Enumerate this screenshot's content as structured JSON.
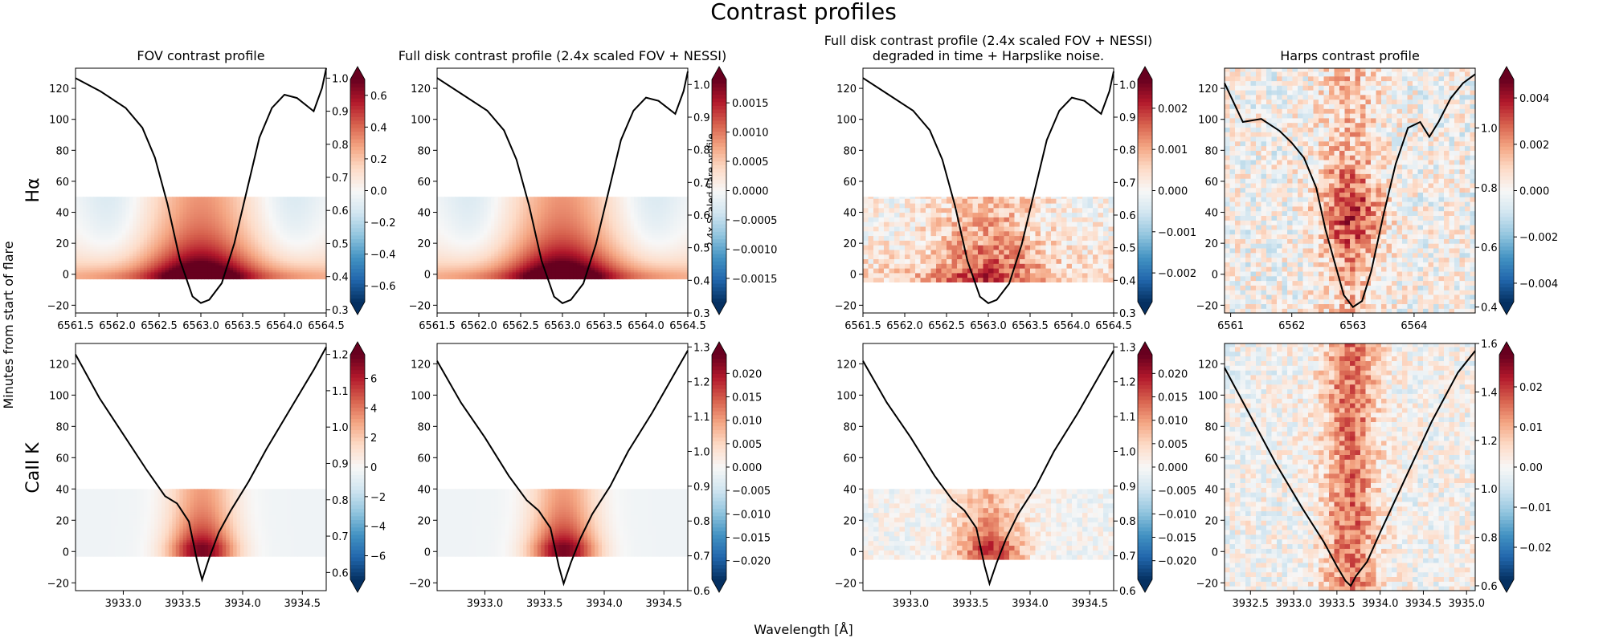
{
  "figure": {
    "suptitle": "Contrast profiles",
    "ylabel": "Minutes from start of flare",
    "xlabel": "Wavelength [Å]",
    "row_labels": [
      "Hα",
      "CaII K"
    ],
    "colormap": "RdBu_r"
  },
  "chart_data": [
    {
      "type": "heatmap",
      "row": 0,
      "col": 0,
      "title": "FOV contrast profile",
      "xlim": [
        6561.5,
        6564.5
      ],
      "ylim": [
        -25,
        133
      ],
      "xticks": [
        6561.5,
        6562.0,
        6562.5,
        6563.0,
        6563.5,
        6564.0,
        6564.5
      ],
      "xtick_labels": [
        "6561.5",
        "6562.0",
        "6562.5",
        "6563.0",
        "6563.5",
        "6564.0",
        "6564.5"
      ],
      "yticks": [
        -20,
        0,
        20,
        40,
        60,
        80,
        100,
        120
      ],
      "heatmap_y_range": [
        -3,
        50
      ],
      "pattern": "smooth",
      "line_center": 6563.0,
      "line_width": 0.42,
      "colorbar": {
        "range": [
          -0.7,
          0.7
        ],
        "ticks": [
          -0.6,
          -0.4,
          -0.2,
          0.0,
          0.2,
          0.4,
          0.6
        ],
        "tick_labels": [
          "−0.6",
          "−0.4",
          "−0.2",
          "0.0",
          "0.2",
          "0.4",
          "0.6"
        ]
      },
      "twin_axis": {
        "ylim": [
          0.29,
          1.03
        ],
        "ticks": [
          0.3,
          0.4,
          0.5,
          0.6,
          0.7,
          0.8,
          0.9,
          1.0
        ],
        "tick_labels": [
          "0.3",
          "0.4",
          "0.5",
          "0.6",
          "0.7",
          "0.8",
          "0.9",
          "1.0"
        ],
        "label": ""
      },
      "profile": {
        "x": [
          6561.5,
          6561.8,
          6562.1,
          6562.3,
          6562.45,
          6562.6,
          6562.75,
          6562.9,
          6563.0,
          6563.1,
          6563.25,
          6563.4,
          6563.55,
          6563.7,
          6563.85,
          6564.0,
          6564.15,
          6564.25,
          6564.35,
          6564.45,
          6564.5
        ],
        "y": [
          1.0,
          0.96,
          0.91,
          0.85,
          0.76,
          0.62,
          0.45,
          0.34,
          0.32,
          0.33,
          0.38,
          0.5,
          0.66,
          0.82,
          0.91,
          0.95,
          0.94,
          0.92,
          0.9,
          0.97,
          1.03
        ]
      }
    },
    {
      "type": "heatmap",
      "row": 0,
      "col": 1,
      "title": "Full disk contrast profile (2.4x scaled FOV + NESSI)",
      "xlim": [
        6561.5,
        6564.5
      ],
      "ylim": [
        -25,
        133
      ],
      "xticks": [
        6561.5,
        6562.0,
        6562.5,
        6563.0,
        6563.5,
        6564.0,
        6564.5
      ],
      "xtick_labels": [
        "6561.5",
        "6562.0",
        "6562.5",
        "6563.0",
        "6563.5",
        "6564.0",
        "6564.5"
      ],
      "yticks": [
        -20,
        0,
        20,
        40,
        60,
        80,
        100,
        120
      ],
      "heatmap_y_range": [
        -3,
        50
      ],
      "pattern": "smooth",
      "line_center": 6563.0,
      "line_width": 0.42,
      "colorbar": {
        "range": [
          -0.0019,
          0.0019
        ],
        "ticks": [
          -0.0015,
          -0.001,
          -0.0005,
          0.0,
          0.0005,
          0.001,
          0.0015
        ],
        "tick_labels": [
          "−0.0015",
          "−0.0010",
          "−0.0005",
          "0.0000",
          "0.0005",
          "0.0010",
          "0.0015"
        ]
      },
      "twin_axis": {
        "ylim": [
          0.3,
          1.05
        ],
        "ticks": [
          0.3,
          0.4,
          0.5,
          0.6,
          0.7,
          0.8,
          0.9,
          1.0
        ],
        "tick_labels": [
          "0.3",
          "0.4",
          "0.5",
          "0.6",
          "0.7",
          "0.8",
          "0.9",
          "1.0"
        ],
        "label": "2.4x Scaled flare profile"
      },
      "profile": {
        "x": [
          6561.5,
          6561.8,
          6562.1,
          6562.3,
          6562.45,
          6562.6,
          6562.75,
          6562.9,
          6563.0,
          6563.1,
          6563.25,
          6563.4,
          6563.55,
          6563.7,
          6563.85,
          6564.0,
          6564.15,
          6564.25,
          6564.35,
          6564.45,
          6564.5
        ],
        "y": [
          1.02,
          0.97,
          0.92,
          0.86,
          0.77,
          0.63,
          0.46,
          0.35,
          0.33,
          0.34,
          0.39,
          0.51,
          0.67,
          0.83,
          0.92,
          0.96,
          0.95,
          0.93,
          0.91,
          0.98,
          1.04
        ]
      }
    },
    {
      "type": "heatmap",
      "row": 0,
      "col": 2,
      "title": "Full disk contrast profile (2.4x scaled FOV + NESSI)\ndegraded in time + Harpslike noise.",
      "xlim": [
        6561.5,
        6564.5
      ],
      "ylim": [
        -25,
        133
      ],
      "xticks": [
        6561.5,
        6562.0,
        6562.5,
        6563.0,
        6563.5,
        6564.0,
        6564.5
      ],
      "xtick_labels": [
        "6561.5",
        "6562.0",
        "6562.5",
        "6563.0",
        "6563.5",
        "6564.0",
        "6564.5"
      ],
      "yticks": [
        -20,
        0,
        20,
        40,
        60,
        80,
        100,
        120
      ],
      "heatmap_y_range": [
        -5,
        50
      ],
      "pattern": "noisy",
      "line_center": 6563.0,
      "line_width": 0.45,
      "colorbar": {
        "range": [
          -0.0027,
          0.0027
        ],
        "ticks": [
          -0.002,
          -0.001,
          0.0,
          0.001,
          0.002
        ],
        "tick_labels": [
          "−0.002",
          "−0.001",
          "0.000",
          "0.001",
          "0.002"
        ]
      },
      "twin_axis": {
        "ylim": [
          0.3,
          1.05
        ],
        "ticks": [
          0.3,
          0.4,
          0.5,
          0.6,
          0.7,
          0.8,
          0.9,
          1.0
        ],
        "tick_labels": [
          "0.3",
          "0.4",
          "0.5",
          "0.6",
          "0.7",
          "0.8",
          "0.9",
          "1.0"
        ],
        "label": ""
      },
      "profile": {
        "x": [
          6561.5,
          6561.8,
          6562.1,
          6562.3,
          6562.45,
          6562.6,
          6562.75,
          6562.9,
          6563.0,
          6563.1,
          6563.25,
          6563.4,
          6563.55,
          6563.7,
          6563.85,
          6564.0,
          6564.15,
          6564.25,
          6564.35,
          6564.45,
          6564.5
        ],
        "y": [
          1.02,
          0.97,
          0.92,
          0.86,
          0.77,
          0.63,
          0.46,
          0.35,
          0.33,
          0.34,
          0.39,
          0.51,
          0.67,
          0.83,
          0.92,
          0.96,
          0.95,
          0.93,
          0.91,
          0.98,
          1.04
        ]
      }
    },
    {
      "type": "heatmap",
      "row": 0,
      "col": 3,
      "title": "Harps contrast profile",
      "xlim": [
        6560.9,
        6565.0
      ],
      "ylim": [
        -25,
        133
      ],
      "xticks": [
        6561,
        6562,
        6563,
        6564
      ],
      "xtick_labels": [
        "6561",
        "6562",
        "6563",
        "6564"
      ],
      "yticks": [
        -20,
        0,
        20,
        40,
        60,
        80,
        100,
        120
      ],
      "heatmap_y_range": [
        -25,
        133
      ],
      "pattern": "harps",
      "line_center": 6562.95,
      "line_width": 0.35,
      "colorbar": {
        "range": [
          -0.0048,
          0.0048
        ],
        "ticks": [
          -0.004,
          -0.002,
          0.0,
          0.002,
          0.004
        ],
        "tick_labels": [
          "−0.004",
          "−0.002",
          "0.000",
          "0.002",
          "0.004"
        ]
      },
      "twin_axis": {
        "ylim": [
          0.38,
          1.2
        ],
        "ticks": [
          0.4,
          0.6,
          0.8,
          1.0
        ],
        "tick_labels": [
          "0.4",
          "0.6",
          "0.8",
          "1.0"
        ],
        "label": ""
      },
      "profile": {
        "x": [
          6560.9,
          6561.2,
          6561.5,
          6561.8,
          6562.0,
          6562.2,
          6562.4,
          6562.55,
          6562.7,
          6562.85,
          6563.0,
          6563.15,
          6563.3,
          6563.5,
          6563.7,
          6563.9,
          6564.1,
          6564.25,
          6564.4,
          6564.6,
          6564.8,
          6565.0
        ],
        "y": [
          1.15,
          1.02,
          1.03,
          0.99,
          0.95,
          0.9,
          0.8,
          0.66,
          0.55,
          0.44,
          0.4,
          0.42,
          0.52,
          0.71,
          0.88,
          1.0,
          1.02,
          0.97,
          1.02,
          1.1,
          1.15,
          1.18
        ]
      }
    },
    {
      "type": "heatmap",
      "row": 1,
      "col": 0,
      "title": "",
      "xlim": [
        3932.6,
        3934.7
      ],
      "ylim": [
        -25,
        133
      ],
      "xticks": [
        3933.0,
        3933.5,
        3934.0,
        3934.5
      ],
      "xtick_labels": [
        "3933.0",
        "3933.5",
        "3934.0",
        "3934.5"
      ],
      "yticks": [
        -20,
        0,
        20,
        40,
        60,
        80,
        100,
        120
      ],
      "heatmap_y_range": [
        -3,
        40
      ],
      "pattern": "smooth_k",
      "line_center": 3933.66,
      "line_width": 0.2,
      "colorbar": {
        "range": [
          -7.6,
          7.6
        ],
        "ticks": [
          -6,
          -4,
          -2,
          0,
          2,
          4,
          6
        ],
        "tick_labels": [
          "−6",
          "−4",
          "−2",
          "0",
          "2",
          "4",
          "6"
        ]
      },
      "twin_axis": {
        "ylim": [
          0.55,
          1.23
        ],
        "ticks": [
          0.6,
          0.7,
          0.8,
          0.9,
          1.0,
          1.1,
          1.2
        ],
        "tick_labels": [
          "0.6",
          "0.7",
          "0.8",
          "0.9",
          "1.0",
          "1.1",
          "1.2"
        ],
        "label": ""
      },
      "profile": {
        "x": [
          3932.6,
          3932.8,
          3933.0,
          3933.2,
          3933.35,
          3933.45,
          3933.55,
          3933.62,
          3933.66,
          3933.72,
          3933.8,
          3933.9,
          3934.05,
          3934.2,
          3934.4,
          3934.6,
          3934.7
        ],
        "y": [
          1.2,
          1.08,
          0.98,
          0.88,
          0.81,
          0.79,
          0.74,
          0.63,
          0.58,
          0.64,
          0.71,
          0.77,
          0.85,
          0.94,
          1.05,
          1.16,
          1.22
        ]
      }
    },
    {
      "type": "heatmap",
      "row": 1,
      "col": 1,
      "title": "",
      "xlim": [
        3932.6,
        3934.7
      ],
      "ylim": [
        -25,
        133
      ],
      "xticks": [
        3933.0,
        3933.5,
        3934.0,
        3934.5
      ],
      "xtick_labels": [
        "3933.0",
        "3933.5",
        "3934.0",
        "3934.5"
      ],
      "yticks": [
        -20,
        0,
        20,
        40,
        60,
        80,
        100,
        120
      ],
      "heatmap_y_range": [
        -3,
        40
      ],
      "pattern": "smooth_k",
      "line_center": 3933.66,
      "line_width": 0.2,
      "colorbar": {
        "range": [
          -0.024,
          0.024
        ],
        "ticks": [
          -0.02,
          -0.015,
          -0.01,
          -0.005,
          0.0,
          0.005,
          0.01,
          0.015,
          0.02
        ],
        "tick_labels": [
          "−0.020",
          "−0.015",
          "−0.010",
          "−0.005",
          "0.000",
          "0.005",
          "0.010",
          "0.015",
          "0.020"
        ]
      },
      "twin_axis": {
        "ylim": [
          0.6,
          1.31
        ],
        "ticks": [
          0.6,
          0.7,
          0.8,
          0.9,
          1.0,
          1.1,
          1.2,
          1.3
        ],
        "tick_labels": [
          "0.6",
          "0.7",
          "0.8",
          "0.9",
          "1.0",
          "1.1",
          "1.2",
          "1.3"
        ],
        "label": ""
      },
      "profile": {
        "x": [
          3932.6,
          3932.8,
          3933.0,
          3933.2,
          3933.35,
          3933.45,
          3933.55,
          3933.62,
          3933.66,
          3933.72,
          3933.8,
          3933.9,
          3934.05,
          3934.2,
          3934.4,
          3934.6,
          3934.7
        ],
        "y": [
          1.26,
          1.14,
          1.04,
          0.93,
          0.86,
          0.83,
          0.78,
          0.67,
          0.62,
          0.68,
          0.75,
          0.82,
          0.9,
          1.0,
          1.11,
          1.23,
          1.29
        ]
      }
    },
    {
      "type": "heatmap",
      "row": 1,
      "col": 2,
      "title": "",
      "xlim": [
        3932.6,
        3934.7
      ],
      "ylim": [
        -25,
        133
      ],
      "xticks": [
        3933.0,
        3933.5,
        3934.0,
        3934.5
      ],
      "xtick_labels": [
        "3933.0",
        "3933.5",
        "3934.0",
        "3934.5"
      ],
      "yticks": [
        -20,
        0,
        20,
        40,
        60,
        80,
        100,
        120
      ],
      "heatmap_y_range": [
        -5,
        40
      ],
      "pattern": "noisy_k",
      "line_center": 3933.66,
      "line_width": 0.2,
      "colorbar": {
        "range": [
          -0.024,
          0.024
        ],
        "ticks": [
          -0.02,
          -0.015,
          -0.01,
          -0.005,
          0.0,
          0.005,
          0.01,
          0.015,
          0.02
        ],
        "tick_labels": [
          "−0.020",
          "−0.015",
          "−0.010",
          "−0.005",
          "0.000",
          "0.005",
          "0.010",
          "0.015",
          "0.020"
        ]
      },
      "twin_axis": {
        "ylim": [
          0.6,
          1.31
        ],
        "ticks": [
          0.6,
          0.7,
          0.8,
          0.9,
          1.0,
          1.1,
          1.2,
          1.3
        ],
        "tick_labels": [
          "0.6",
          "0.7",
          "0.8",
          "0.9",
          "1.0",
          "1.1",
          "1.2",
          "1.3"
        ],
        "label": ""
      },
      "profile": {
        "x": [
          3932.6,
          3932.8,
          3933.0,
          3933.2,
          3933.35,
          3933.45,
          3933.55,
          3933.62,
          3933.66,
          3933.72,
          3933.8,
          3933.9,
          3934.05,
          3934.2,
          3934.4,
          3934.6,
          3934.7
        ],
        "y": [
          1.26,
          1.14,
          1.04,
          0.93,
          0.86,
          0.83,
          0.78,
          0.67,
          0.62,
          0.68,
          0.75,
          0.82,
          0.9,
          1.0,
          1.11,
          1.23,
          1.29
        ]
      }
    },
    {
      "type": "heatmap",
      "row": 1,
      "col": 3,
      "title": "",
      "xlim": [
        3932.2,
        3935.1
      ],
      "ylim": [
        -25,
        133
      ],
      "xticks": [
        3932.5,
        3933.0,
        3933.5,
        3934.0,
        3934.5,
        3935.0
      ],
      "xtick_labels": [
        "3932.5",
        "3933.0",
        "3933.5",
        "3934.0",
        "3934.5",
        "3935.0"
      ],
      "yticks": [
        -20,
        0,
        20,
        40,
        60,
        80,
        100,
        120
      ],
      "heatmap_y_range": [
        -25,
        133
      ],
      "pattern": "harps_k",
      "line_center": 3933.66,
      "line_width": 0.22,
      "colorbar": {
        "range": [
          -0.028,
          0.028
        ],
        "ticks": [
          -0.02,
          -0.01,
          0.0,
          0.01,
          0.02
        ],
        "tick_labels": [
          "−0.02",
          "−0.01",
          "0.00",
          "0.01",
          "0.02"
        ]
      },
      "twin_axis": {
        "ylim": [
          0.58,
          1.6
        ],
        "ticks": [
          0.6,
          0.8,
          1.0,
          1.2,
          1.4,
          1.6
        ],
        "tick_labels": [
          "0.6",
          "0.8",
          "1.0",
          "1.2",
          "1.4",
          "1.6"
        ],
        "label": ""
      },
      "profile": {
        "x": [
          3932.2,
          3932.5,
          3932.8,
          3933.1,
          3933.35,
          3933.5,
          3933.6,
          3933.66,
          3933.72,
          3933.85,
          3934.0,
          3934.3,
          3934.6,
          3934.9,
          3935.1
        ],
        "y": [
          1.5,
          1.3,
          1.1,
          0.92,
          0.78,
          0.68,
          0.62,
          0.6,
          0.64,
          0.7,
          0.82,
          1.05,
          1.28,
          1.48,
          1.57
        ]
      }
    }
  ]
}
